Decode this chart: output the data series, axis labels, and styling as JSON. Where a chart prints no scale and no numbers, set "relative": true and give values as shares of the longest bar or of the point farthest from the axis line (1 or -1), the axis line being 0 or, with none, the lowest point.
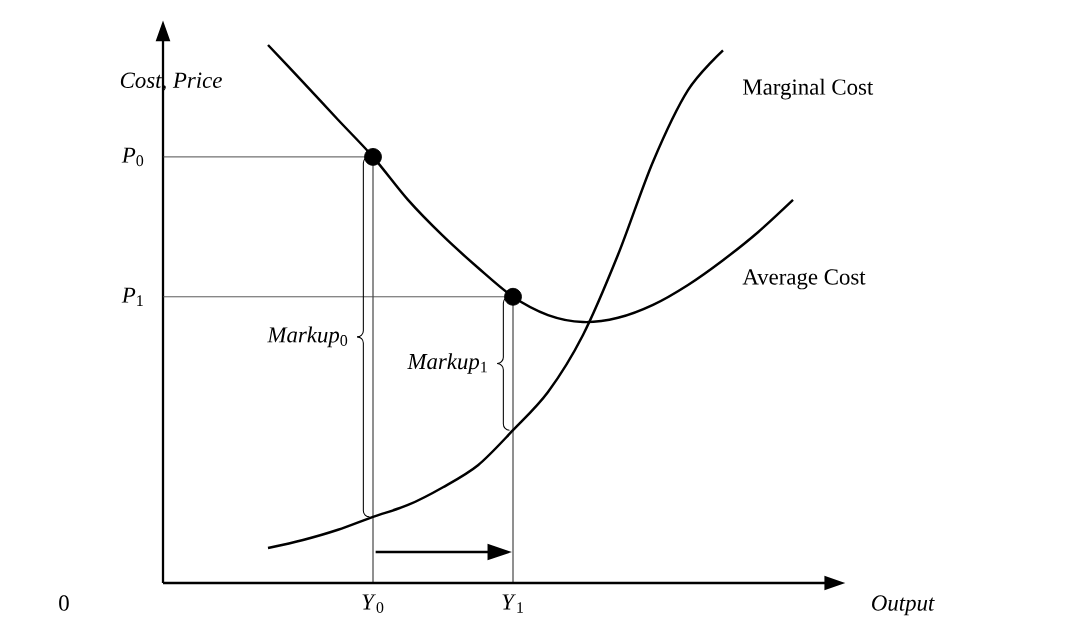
{
  "chart_data": {
    "type": "line",
    "relative": true,
    "xlabel": "Output",
    "ylabel": "Cost, Price",
    "categories": [
      null,
      null,
      null,
      null,
      null,
      null,
      "*Y*$_{0}$",
      null,
      null,
      null,
      "*Y*$_{1}$",
      null,
      null,
      null,
      null,
      null,
      null,
      null,
      null,
      null
    ],
    "series": [
      {
        "name": "Marginal Cost",
        "color": "#000000",
        "values": [
          null,
          null,
          null,
          0.065,
          0.08,
          0.099,
          0.123,
          0.145,
          0.178,
          0.219,
          0.284,
          0.355,
          0.461,
          0.61,
          0.783,
          0.916,
          0.99,
          null,
          null,
          null
        ]
      },
      {
        "name": "Average Cost",
        "color": "#000000",
        "values": [
          null,
          null,
          null,
          1,
          0.931,
          0.861,
          0.792,
          0.712,
          0.645,
          0.586,
          0.532,
          0.498,
          0.485,
          0.493,
          0.517,
          0.554,
          0.6,
          0.652,
          0.712,
          null
        ]
      },
      {
        "type": "lollipop",
        "marker": "circle",
        "color": "#000000",
        "values": [
          null,
          null,
          null,
          null,
          null,
          null,
          0.792,
          null,
          null,
          null,
          0.532,
          null,
          null,
          null,
          null,
          null,
          null,
          null,
          null,
          null
        ]
      },
      {
        "name": "*P*$_{0}$",
        "color": "#333333",
        "values": [
          0.792,
          0.792,
          0.792,
          0.792,
          0.792,
          0.792,
          0.792,
          null,
          null,
          null,
          null,
          null,
          null,
          null,
          null,
          null,
          null,
          null,
          null,
          null
        ]
      },
      {
        "name": "*P*$_{1}$",
        "color": "#444444",
        "values": [
          0.532,
          0.532,
          0.532,
          0.532,
          0.532,
          0.532,
          0.532,
          0.532,
          0.532,
          0.532,
          0.532,
          null,
          null,
          null,
          null,
          null,
          null,
          null,
          null,
          null
        ]
      }
    ],
    "annotations": [
      "0",
      "*Markup*$_{0}$",
      "*Markup*$_{1}$"
    ]
  }
}
